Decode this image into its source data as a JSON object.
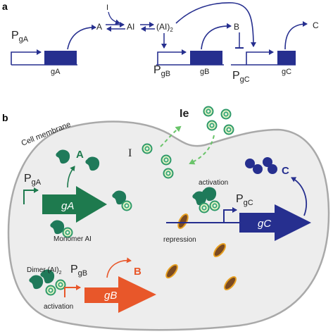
{
  "panel_a": {
    "label": "a",
    "promoter_ga": "P",
    "promoter_ga_sub": "gA",
    "gene_ga": "gA",
    "species_i": "I",
    "species_a": "A",
    "species_ai": "AI",
    "species_ai2": "(AI)",
    "species_ai2_sub": "2",
    "species_b": "B",
    "species_c": "C",
    "promoter_gb": "P",
    "promoter_gb_sub": "gB",
    "gene_gb": "gB",
    "promoter_gc": "P",
    "promoter_gc_sub": "gC",
    "gene_gc": "gC"
  },
  "panel_b": {
    "label": "b",
    "cell_membrane": "Cell membrane",
    "inducer_external": "Ie",
    "inducer_internal": "I",
    "promoter_ga": "P",
    "promoter_ga_sub": "gA",
    "protein_a": "A",
    "gene_ga": "gA",
    "monomer_label": "Monomer AI",
    "activation_top": "activation",
    "promoter_gc": "P",
    "promoter_gc_sub": "gC",
    "protein_c": "C",
    "repression": "repression",
    "gene_gc": "gC",
    "dimer_label": "Dimer (AI)",
    "dimer_sub": "2",
    "promoter_gb": "P",
    "promoter_gb_sub": "gB",
    "protein_b": "B",
    "gene_gb": "gB",
    "activation_bottom": "activation"
  },
  "colors": {
    "navy": "#262f8f",
    "green": "#1e7a4e",
    "teal": "#2a8a6a",
    "orange": "#e8572a",
    "brown": "#8a5a2a",
    "gold": "#e8a020",
    "dashed_green": "#6ac46a",
    "membrane": "#a9a9a9"
  }
}
